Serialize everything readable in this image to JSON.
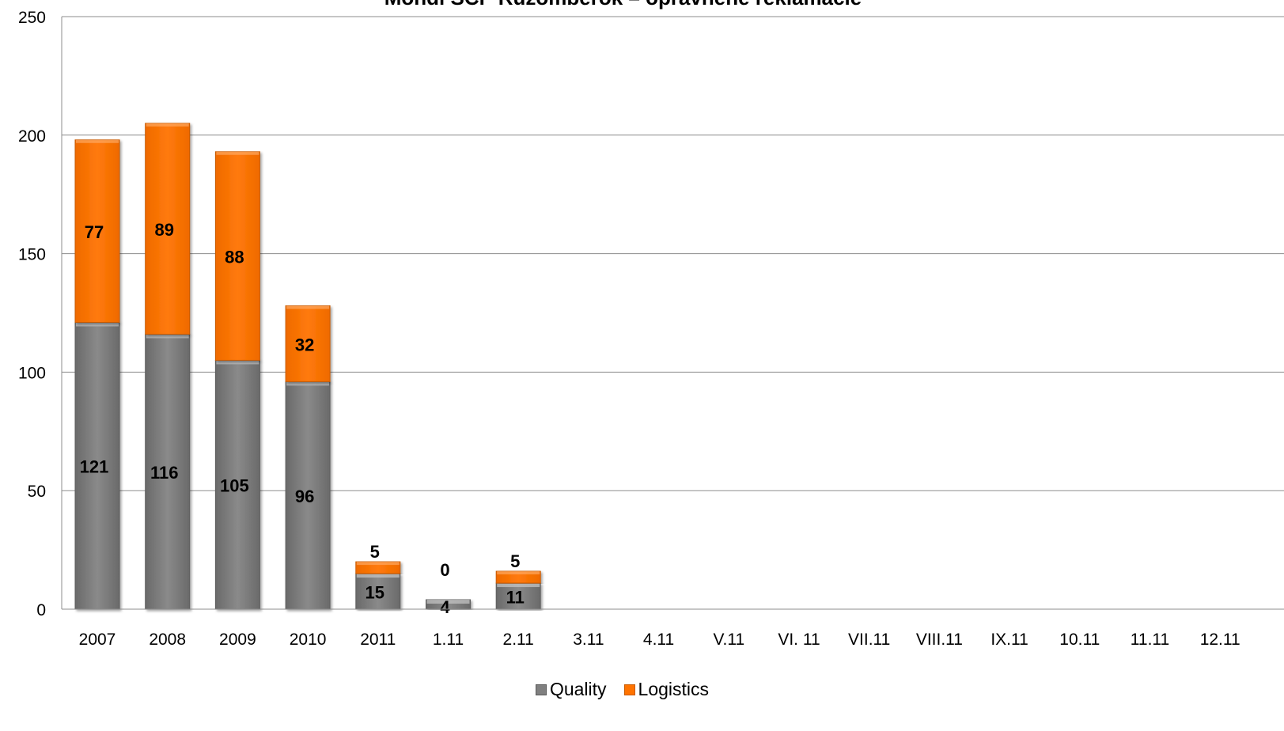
{
  "chart_data": {
    "type": "bar",
    "stacked": true,
    "title": "Mondi SCP  Ružomberok  – oprávnené reklamácie",
    "categories": [
      "2007",
      "2008",
      "2009",
      "2010",
      "2011",
      "1.11",
      "2.11",
      "3.11",
      "4.11",
      "V.11",
      "VI. 11",
      "VII.11",
      "VIII.11",
      "IX.11",
      "10.11",
      "11.11",
      "12.11"
    ],
    "series": [
      {
        "name": "Quality",
        "color": "#808080",
        "values": [
          121,
          116,
          105,
          96,
          15,
          4,
          11,
          null,
          null,
          null,
          null,
          null,
          null,
          null,
          null,
          null,
          null
        ]
      },
      {
        "name": "Logistics",
        "color": "#FF7300",
        "values": [
          77,
          89,
          88,
          32,
          5,
          0,
          5,
          null,
          null,
          null,
          null,
          null,
          null,
          null,
          null,
          null,
          null
        ]
      }
    ],
    "ylim": [
      0,
      250
    ],
    "yticks": [
      "0",
      "50",
      "100",
      "150",
      "200",
      "250"
    ],
    "xlabel": "",
    "ylabel": "",
    "grid": true,
    "legend_position": "bottom"
  }
}
